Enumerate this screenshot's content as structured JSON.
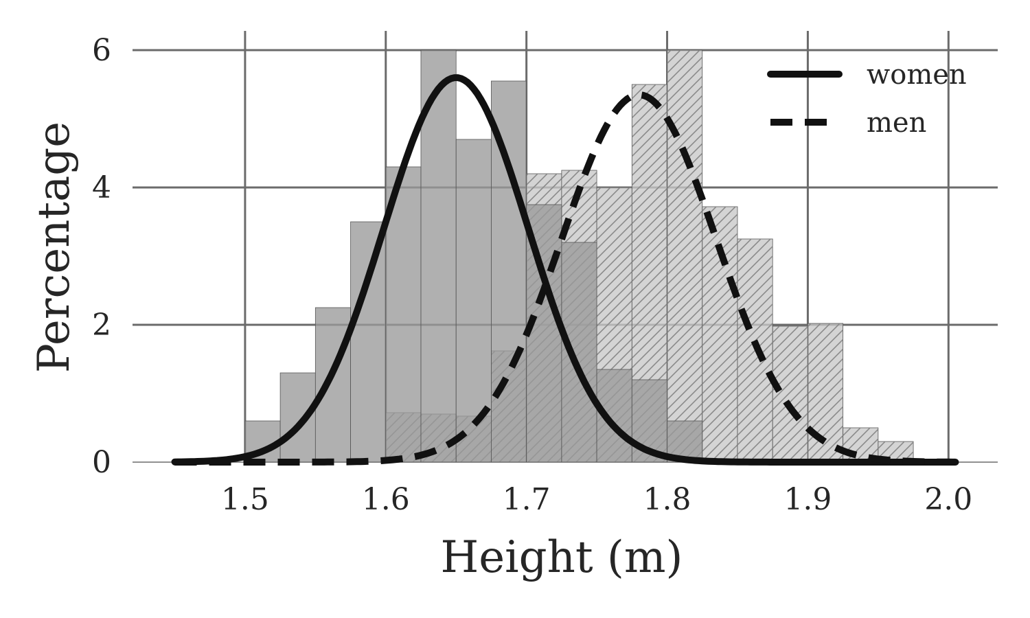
{
  "chart_data": {
    "type": "bar",
    "xlabel": "Height (m)",
    "ylabel": "Percentage",
    "xlim": [
      1.42,
      2.035
    ],
    "ylim": [
      0,
      6
    ],
    "x_ticks": [
      "1.5",
      "1.6",
      "1.7",
      "1.8",
      "1.9",
      "2.0"
    ],
    "y_ticks": [
      "0",
      "2",
      "4",
      "6"
    ],
    "grid": true,
    "legend": {
      "placement": "top-right",
      "entries": [
        "women",
        "men"
      ]
    },
    "colors": {
      "women_bars": "#9a9a9a",
      "men_bars": "#c8c8c8",
      "curve": "#111111",
      "grid": "#6b6b6b"
    },
    "bin_edges": [
      1.5,
      1.525,
      1.55,
      1.575,
      1.6,
      1.625,
      1.65,
      1.675,
      1.7,
      1.725,
      1.75,
      1.775,
      1.8,
      1.825,
      1.85,
      1.875,
      1.9,
      1.925,
      1.95,
      1.975
    ],
    "series": [
      {
        "name": "women",
        "style": "solid",
        "hist": [
          0.6,
          1.3,
          2.25,
          3.5,
          4.3,
          6.0,
          4.7,
          5.55,
          3.75,
          3.2,
          1.35,
          1.2,
          0.6,
          0.0,
          0.0,
          0.0,
          0.0,
          0.0,
          0.0
        ],
        "mean": 1.65,
        "peak": 5.6
      },
      {
        "name": "men",
        "style": "dashed",
        "hist": [
          0.0,
          0.0,
          0.0,
          0.0,
          0.72,
          0.7,
          0.67,
          1.62,
          4.2,
          4.25,
          4.0,
          5.5,
          6.0,
          3.72,
          3.25,
          1.98,
          2.02,
          0.5,
          0.3
        ],
        "mean": 1.78,
        "peak": 5.35
      }
    ]
  }
}
